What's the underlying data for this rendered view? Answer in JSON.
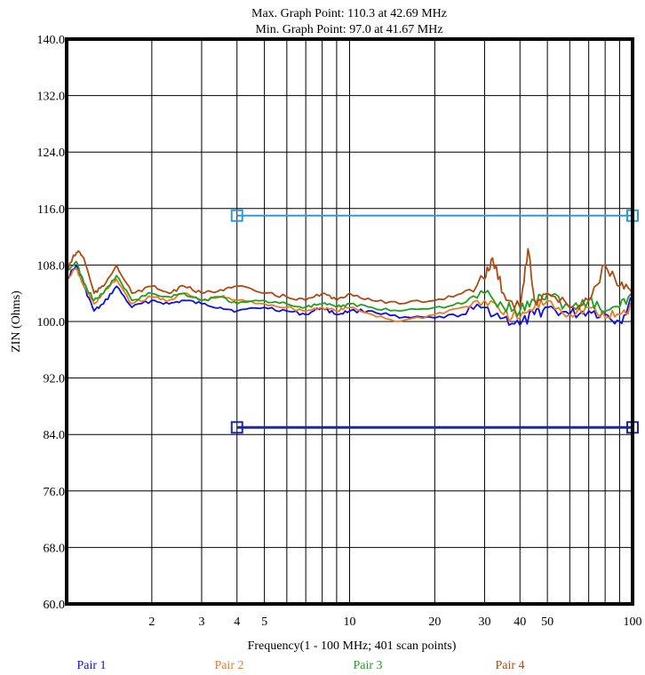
{
  "chart_data": {
    "type": "line",
    "header": {
      "max_line": "Max. Graph Point: 110.3 at 42.69 MHz",
      "min_line": "Min. Graph Point: 97.0 at 41.67 MHz"
    },
    "xlabel": "Frequency(1 - 100 MHz; 401 scan points)",
    "ylabel": "ZIN (Ohms)",
    "x_scale": "log",
    "xlim": [
      1,
      100
    ],
    "ylim": [
      60,
      140
    ],
    "grid": true,
    "legend_placement": "bottom",
    "y_ticks": [
      "60.0",
      "68.0",
      "76.0",
      "84.0",
      "92.0",
      "100.0",
      "108.0",
      "116.0",
      "124.0",
      "132.0",
      "140.0"
    ],
    "y_tick_values": [
      60,
      68,
      76,
      84,
      92,
      100,
      108,
      116,
      124,
      132,
      140
    ],
    "x_ticks": [
      {
        "value": 2,
        "label": "2"
      },
      {
        "value": 3,
        "label": "3"
      },
      {
        "value": 4,
        "label": "4"
      },
      {
        "value": 5,
        "label": "5"
      },
      {
        "value": 10,
        "label": "10"
      },
      {
        "value": 20,
        "label": "20"
      },
      {
        "value": 30,
        "label": "30"
      },
      {
        "value": 40,
        "label": "40"
      },
      {
        "value": 50,
        "label": "50"
      },
      {
        "value": 100,
        "label": "100"
      }
    ],
    "grid_x": [
      2,
      3,
      4,
      5,
      6,
      7,
      8,
      9,
      10,
      20,
      30,
      40,
      50,
      60,
      70,
      80,
      90
    ],
    "limit_lines": [
      {
        "value": 115,
        "x_start": 4,
        "x_end": 100,
        "color": "#2b9be0"
      },
      {
        "value": 85,
        "x_start": 4,
        "x_end": 100,
        "color": "#1e2a9b"
      }
    ],
    "series": [
      {
        "name": "Pair 1",
        "color": "#1010e0",
        "points": [
          [
            1,
            106
          ],
          [
            1.08,
            108
          ],
          [
            1.15,
            105
          ],
          [
            1.25,
            101.5
          ],
          [
            1.35,
            102.5
          ],
          [
            1.5,
            105
          ],
          [
            1.7,
            102
          ],
          [
            2,
            103
          ],
          [
            2.3,
            102.5
          ],
          [
            2.6,
            103
          ],
          [
            3,
            102.5
          ],
          [
            3.5,
            102
          ],
          [
            4,
            101.5
          ],
          [
            5,
            102
          ],
          [
            6,
            101.5
          ],
          [
            7,
            101
          ],
          [
            8,
            102
          ],
          [
            9,
            101
          ],
          [
            10,
            101.5
          ],
          [
            12,
            101.5
          ],
          [
            15,
            100.5
          ],
          [
            20,
            100.5
          ],
          [
            25,
            101
          ],
          [
            30,
            102
          ],
          [
            35,
            100.5
          ],
          [
            40,
            99.5
          ],
          [
            45,
            101
          ],
          [
            50,
            102
          ],
          [
            60,
            101
          ],
          [
            70,
            101.5
          ],
          [
            80,
            101
          ],
          [
            90,
            100
          ],
          [
            100,
            103
          ]
        ]
      },
      {
        "name": "Pair 2",
        "color": "#f07a20",
        "points": [
          [
            1,
            106
          ],
          [
            1.08,
            107.5
          ],
          [
            1.15,
            105
          ],
          [
            1.25,
            102.5
          ],
          [
            1.35,
            104
          ],
          [
            1.5,
            106
          ],
          [
            1.7,
            102.5
          ],
          [
            2,
            103.5
          ],
          [
            2.3,
            103
          ],
          [
            2.6,
            104
          ],
          [
            3,
            103
          ],
          [
            3.5,
            103.5
          ],
          [
            4,
            103
          ],
          [
            5,
            102.5
          ],
          [
            6,
            102
          ],
          [
            7,
            101.5
          ],
          [
            8,
            102
          ],
          [
            9,
            101.5
          ],
          [
            10,
            102
          ],
          [
            12,
            101
          ],
          [
            15,
            100
          ],
          [
            20,
            101
          ],
          [
            25,
            102
          ],
          [
            30,
            103
          ],
          [
            35,
            101
          ],
          [
            40,
            100.5
          ],
          [
            45,
            102
          ],
          [
            50,
            103
          ],
          [
            60,
            101
          ],
          [
            70,
            102
          ],
          [
            80,
            100.5
          ],
          [
            90,
            101
          ],
          [
            100,
            102
          ]
        ]
      },
      {
        "name": "Pair 3",
        "color": "#20a020",
        "points": [
          [
            1,
            107
          ],
          [
            1.08,
            108.5
          ],
          [
            1.15,
            105.5
          ],
          [
            1.25,
            103
          ],
          [
            1.35,
            104
          ],
          [
            1.5,
            106.5
          ],
          [
            1.7,
            103
          ],
          [
            2,
            104
          ],
          [
            2.3,
            103.5
          ],
          [
            2.6,
            104
          ],
          [
            3,
            103
          ],
          [
            3.5,
            103.5
          ],
          [
            4,
            102.5
          ],
          [
            5,
            103
          ],
          [
            6,
            102.5
          ],
          [
            7,
            102
          ],
          [
            8,
            102.5
          ],
          [
            9,
            102
          ],
          [
            10,
            102.5
          ],
          [
            12,
            102
          ],
          [
            15,
            101.5
          ],
          [
            20,
            102
          ],
          [
            25,
            102.5
          ],
          [
            30,
            104
          ],
          [
            35,
            102
          ],
          [
            40,
            101.5
          ],
          [
            45,
            103
          ],
          [
            50,
            104
          ],
          [
            60,
            102
          ],
          [
            70,
            103
          ],
          [
            80,
            101.5
          ],
          [
            90,
            102
          ],
          [
            100,
            103.5
          ]
        ]
      },
      {
        "name": "Pair 4",
        "color": "#b04a10",
        "points": [
          [
            1,
            107
          ],
          [
            1.05,
            109
          ],
          [
            1.1,
            110
          ],
          [
            1.15,
            109
          ],
          [
            1.25,
            104
          ],
          [
            1.35,
            105
          ],
          [
            1.5,
            108
          ],
          [
            1.7,
            104
          ],
          [
            2,
            105
          ],
          [
            2.3,
            104
          ],
          [
            2.6,
            105
          ],
          [
            3,
            104
          ],
          [
            3.5,
            104.5
          ],
          [
            4,
            105
          ],
          [
            5,
            104
          ],
          [
            6,
            103.5
          ],
          [
            7,
            103
          ],
          [
            8,
            104
          ],
          [
            9,
            103
          ],
          [
            10,
            104
          ],
          [
            12,
            103
          ],
          [
            15,
            102.5
          ],
          [
            20,
            103
          ],
          [
            25,
            104
          ],
          [
            30,
            106
          ],
          [
            32,
            109
          ],
          [
            35,
            104
          ],
          [
            40,
            102
          ],
          [
            42.69,
            110.3
          ],
          [
            45,
            103
          ],
          [
            50,
            104
          ],
          [
            60,
            102
          ],
          [
            70,
            103
          ],
          [
            80,
            108
          ],
          [
            90,
            105
          ],
          [
            100,
            104
          ]
        ]
      }
    ]
  }
}
